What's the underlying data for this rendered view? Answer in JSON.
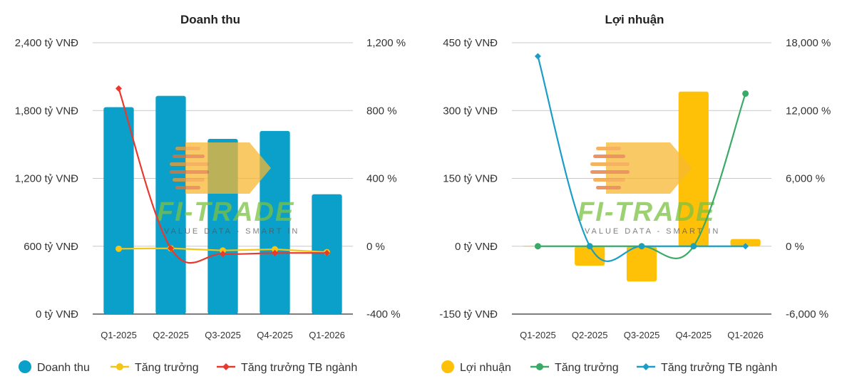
{
  "colors": {
    "revenue_bar": "#0aa0c9",
    "profit_bar": "#ffc107",
    "growth_yellow": "#f5c518",
    "industry_red": "#e8392e",
    "growth_green": "#3aaa67",
    "industry_blue": "#1a9ec7",
    "grid": "#c8c8c8",
    "axis": "#333333"
  },
  "watermark": {
    "brand": "FI-TRADE",
    "tagline": "VALUE DATA - SMART IN"
  },
  "chart_data": [
    {
      "type": "bar",
      "title": "Doanh thu",
      "categories": [
        "Q1-2025",
        "Q2-2025",
        "Q3-2025",
        "Q4-2025",
        "Q1-2026"
      ],
      "y_left": {
        "min": 0,
        "max": 2400,
        "ticks": [
          0,
          600,
          1200,
          1800,
          2400
        ],
        "tick_labels": [
          "0 tỷ VNĐ",
          "600 tỷ VNĐ",
          "1,200 tỷ VNĐ",
          "1,800 tỷ VNĐ",
          "2,400 tỷ VNĐ"
        ]
      },
      "y_right": {
        "min": -400,
        "max": 1200,
        "ticks": [
          -400,
          0,
          400,
          800,
          1200
        ],
        "tick_labels": [
          "-400 %",
          "0 %",
          "400 %",
          "800 %",
          "1,200 %"
        ]
      },
      "series": [
        {
          "name": "Doanh thu",
          "kind": "bar",
          "axis": "left",
          "color": "#0aa0c9",
          "values": [
            1830,
            1930,
            1550,
            1620,
            1060
          ]
        },
        {
          "name": "Tăng trưởng",
          "kind": "line",
          "axis": "right",
          "color": "#f5c518",
          "smooth": false,
          "values": [
            -15,
            -12,
            -25,
            -18,
            -35
          ]
        },
        {
          "name": "Tăng trưởng TB ngành",
          "kind": "line",
          "axis": "right",
          "color": "#e8392e",
          "smooth": true,
          "values": [
            930,
            -12,
            -45,
            -40,
            -40
          ]
        }
      ],
      "legend": "bottom",
      "grid": true
    },
    {
      "type": "bar",
      "title": "Lợi nhuận",
      "categories": [
        "Q1-2025",
        "Q2-2025",
        "Q3-2025",
        "Q4-2025",
        "Q1-2026"
      ],
      "y_left": {
        "min": -150,
        "max": 450,
        "ticks": [
          -150,
          0,
          150,
          300,
          450
        ],
        "tick_labels": [
          "-150 tỷ VNĐ",
          "0 tỷ VNĐ",
          "150 tỷ VNĐ",
          "300 tỷ VNĐ",
          "450 tỷ VNĐ"
        ]
      },
      "y_right": {
        "min": -6000,
        "max": 18000,
        "ticks": [
          -6000,
          0,
          6000,
          12000,
          18000
        ],
        "tick_labels": [
          "-6,000 %",
          "0 %",
          "6,000 %",
          "12,000 %",
          "18,000 %"
        ]
      },
      "series": [
        {
          "name": "Lợi nhuận",
          "kind": "bar",
          "axis": "left",
          "color": "#ffc107",
          "values": [
            1,
            -43,
            -78,
            342,
            16
          ]
        },
        {
          "name": "Tăng trưởng",
          "kind": "line",
          "axis": "right",
          "color": "#3aaa67",
          "smooth": true,
          "values": [
            0,
            0,
            0,
            0,
            13500
          ]
        },
        {
          "name": "Tăng trưởng TB ngành",
          "kind": "line",
          "axis": "right",
          "color": "#1a9ec7",
          "smooth": true,
          "values": [
            16800,
            20,
            0,
            0,
            0
          ]
        }
      ],
      "legend": "bottom",
      "grid": true
    }
  ]
}
